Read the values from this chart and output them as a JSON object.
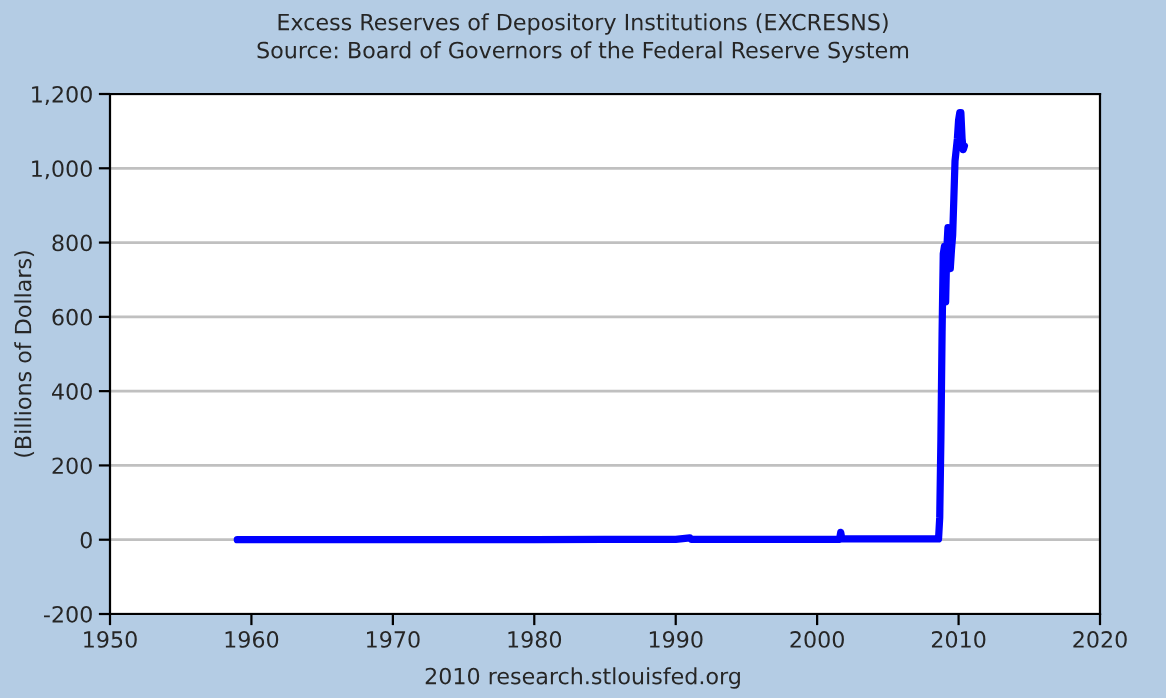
{
  "chart_data": {
    "type": "line",
    "title": "Excess Reserves of Depository Institutions (EXCRESNS)",
    "subtitle": "Source: Board of Governors of the Federal Reserve System",
    "ylabel": "(Billions of Dollars)",
    "annotations": [
      "2010 research.stlouisfed.org"
    ],
    "x": [
      "1959-01",
      "1965-01",
      "1970-01",
      "1975-01",
      "1980-01",
      "1985-01",
      "1990-01",
      "1991-01",
      "1991-02",
      "1995-01",
      "2000-01",
      "2001-08",
      "2001-09",
      "2001-10",
      "2002-06",
      "2003-06",
      "2004-06",
      "2005-06",
      "2006-06",
      "2007-06",
      "2008-06",
      "2008-08",
      "2008-09",
      "2008-10",
      "2008-11",
      "2008-12",
      "2009-01",
      "2009-02",
      "2009-03",
      "2009-04",
      "2009-05",
      "2009-06",
      "2009-07",
      "2009-08",
      "2009-09",
      "2009-10",
      "2009-11",
      "2009-12",
      "2010-01",
      "2010-02",
      "2010-03",
      "2010-04",
      "2010-05",
      "2010-06"
    ],
    "series": [
      {
        "color": "#0000ff",
        "values": [
          0,
          0,
          0,
          0,
          0,
          1,
          1,
          5,
          1,
          1,
          1,
          1,
          20,
          2,
          2,
          2,
          2,
          2,
          2,
          2,
          2,
          2,
          60,
          270,
          560,
          770,
          790,
          640,
          780,
          840,
          800,
          730,
          780,
          820,
          920,
          1020,
          1050,
          1080,
          1130,
          1150,
          1150,
          1080,
          1050,
          1060
        ]
      }
    ],
    "xlim": [
      "1950-01-01",
      "2020-01-01"
    ],
    "xticks": [
      {
        "value": "1950-01-01",
        "label": "1950"
      },
      {
        "value": "1960-01-01",
        "label": "1960"
      },
      {
        "value": "1970-01-01",
        "label": "1970"
      },
      {
        "value": "1980-01-01",
        "label": "1980"
      },
      {
        "value": "1990-01-01",
        "label": "1990"
      },
      {
        "value": "2000-01-01",
        "label": "2000"
      },
      {
        "value": "2010-01-01",
        "label": "2010"
      },
      {
        "value": "2020-01-01",
        "label": "2020"
      }
    ],
    "ylim": [
      -200,
      1200
    ],
    "yticks": [
      {
        "value": -200,
        "label": "-200"
      },
      {
        "value": 0,
        "label": "0"
      },
      {
        "value": 200,
        "label": "200"
      },
      {
        "value": 400,
        "label": "400"
      },
      {
        "value": 600,
        "label": "600"
      },
      {
        "value": 800,
        "label": "800"
      },
      {
        "value": 1000,
        "label": "1,000"
      },
      {
        "value": 1200,
        "label": "1,200"
      }
    ],
    "grid": "y",
    "legend": false,
    "line_style": "solid",
    "marker": "none"
  }
}
